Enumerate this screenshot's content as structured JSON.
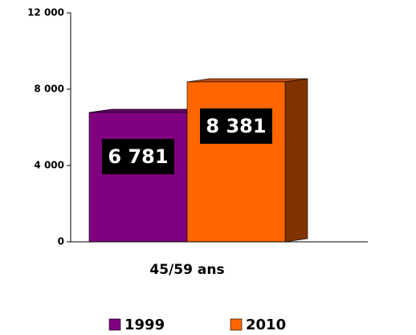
{
  "chart_data": {
    "type": "bar3d",
    "categories": [
      "45/59 ans"
    ],
    "series": [
      {
        "name": "1999",
        "color": "#800080",
        "values": [
          6781
        ],
        "value_labels": [
          "6 781"
        ]
      },
      {
        "name": "2010",
        "color": "#ff6600",
        "values": [
          8381
        ],
        "value_labels": [
          "8 381"
        ]
      }
    ],
    "ylim": [
      0,
      12000
    ],
    "yticks": [
      0,
      {
        "value": 4000,
        "label": "4 000"
      },
      {
        "value": 8000,
        "label": "8 000"
      },
      {
        "value": 12000,
        "label": "12 000"
      }
    ],
    "legend": "bottom"
  }
}
